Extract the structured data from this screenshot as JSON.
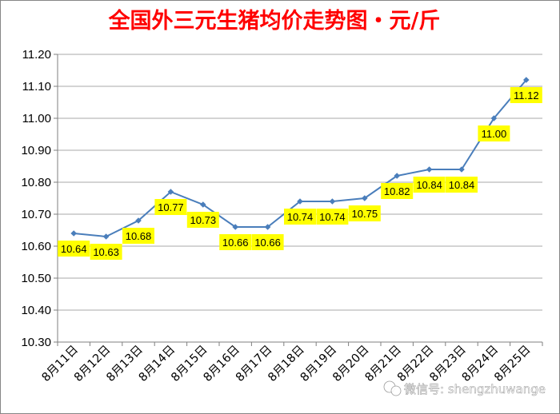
{
  "chart_data": {
    "type": "line",
    "title": "全国外三元生猪均价走势图・元/斤",
    "categories": [
      "8月11日",
      "8月12日",
      "8月13日",
      "8月14日",
      "8月15日",
      "8月16日",
      "8月17日",
      "8月18日",
      "8月19日",
      "8月20日",
      "8月21日",
      "8月22日",
      "8月23日",
      "8月24日",
      "8月25日"
    ],
    "values": [
      10.64,
      10.63,
      10.68,
      10.77,
      10.73,
      10.66,
      10.66,
      10.74,
      10.74,
      10.75,
      10.82,
      10.84,
      10.84,
      11.0,
      11.12
    ],
    "data_labels": [
      "10.64",
      "10.63",
      "10.68",
      "10.77",
      "10.73",
      "10.66",
      "10.66",
      "10.74",
      "10.74",
      "10.75",
      "10.82",
      "10.84",
      "10.84",
      "11.00",
      "11.12"
    ],
    "yticks": [
      "10.30",
      "10.40",
      "10.50",
      "10.60",
      "10.70",
      "10.80",
      "10.90",
      "11.00",
      "11.10",
      "11.20"
    ],
    "ylim": [
      10.3,
      11.2
    ],
    "grid": true,
    "line_color": "#4a7ebb",
    "label_bg_color": "#ffff00",
    "title_color": "#ff0000"
  },
  "watermark": {
    "text": "微信号: shengzhuwange",
    "icon": "wechat-icon"
  }
}
